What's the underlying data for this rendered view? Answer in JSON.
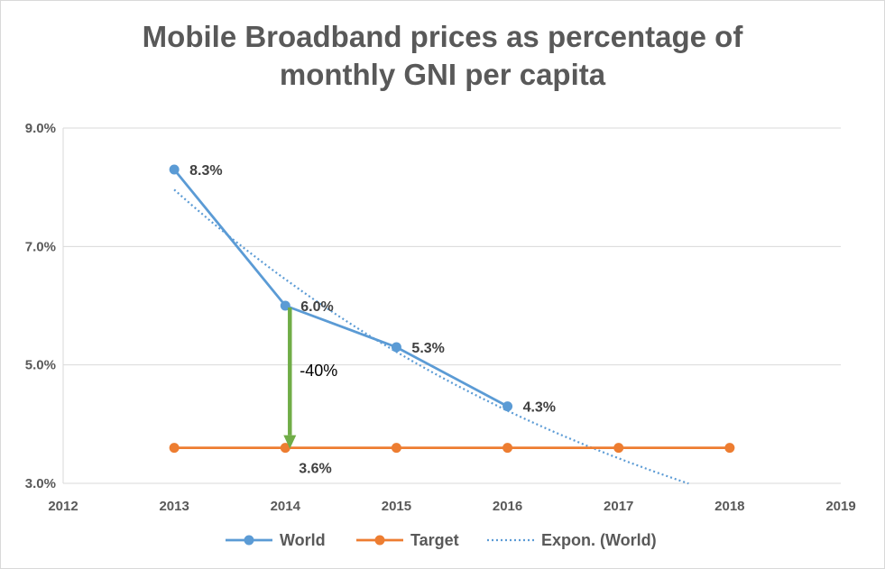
{
  "chart_data": {
    "type": "line",
    "title_line1": "Mobile Broadband prices as percentage of",
    "title_line2": "monthly GNI per capita",
    "xlim": [
      2012,
      2019
    ],
    "x_ticks": [
      "2012",
      "2013",
      "2014",
      "2015",
      "2016",
      "2017",
      "2018",
      "2019"
    ],
    "ylim": [
      3.0,
      9.0
    ],
    "y_ticks": [
      {
        "value": 3.0,
        "label": "3.0%"
      },
      {
        "value": 5.0,
        "label": "5.0%"
      },
      {
        "value": 7.0,
        "label": "7.0%"
      },
      {
        "value": 9.0,
        "label": "9.0%"
      }
    ],
    "grid": true,
    "series": [
      {
        "name": "World",
        "color": "#5b9bd5",
        "x": [
          2013,
          2014,
          2015,
          2016
        ],
        "values": [
          8.3,
          6.0,
          5.3,
          4.3
        ],
        "labels": [
          "8.3%",
          "6.0%",
          "5.3%",
          "4.3%"
        ]
      },
      {
        "name": "Target",
        "color": "#ed7d31",
        "x": [
          2013,
          2014,
          2015,
          2016,
          2017,
          2018
        ],
        "values": [
          3.6,
          3.6,
          3.6,
          3.6,
          3.6,
          3.6
        ],
        "label_text": "3.6%",
        "label_at_x": 2014
      }
    ],
    "trendline": {
      "name": "Expon. (World)",
      "type": "exponential",
      "color": "#5b9bd5",
      "x_from": 2013,
      "x_to": 2017.63,
      "a": 7.96,
      "rate": 0.211
    },
    "annotation": {
      "text": "-40%",
      "color": "#70ad47",
      "x": 2014,
      "from": 6.0,
      "to": 3.6
    },
    "legend": [
      "World",
      "Target",
      "Expon. (World)"
    ],
    "legend_position": "bottom"
  }
}
